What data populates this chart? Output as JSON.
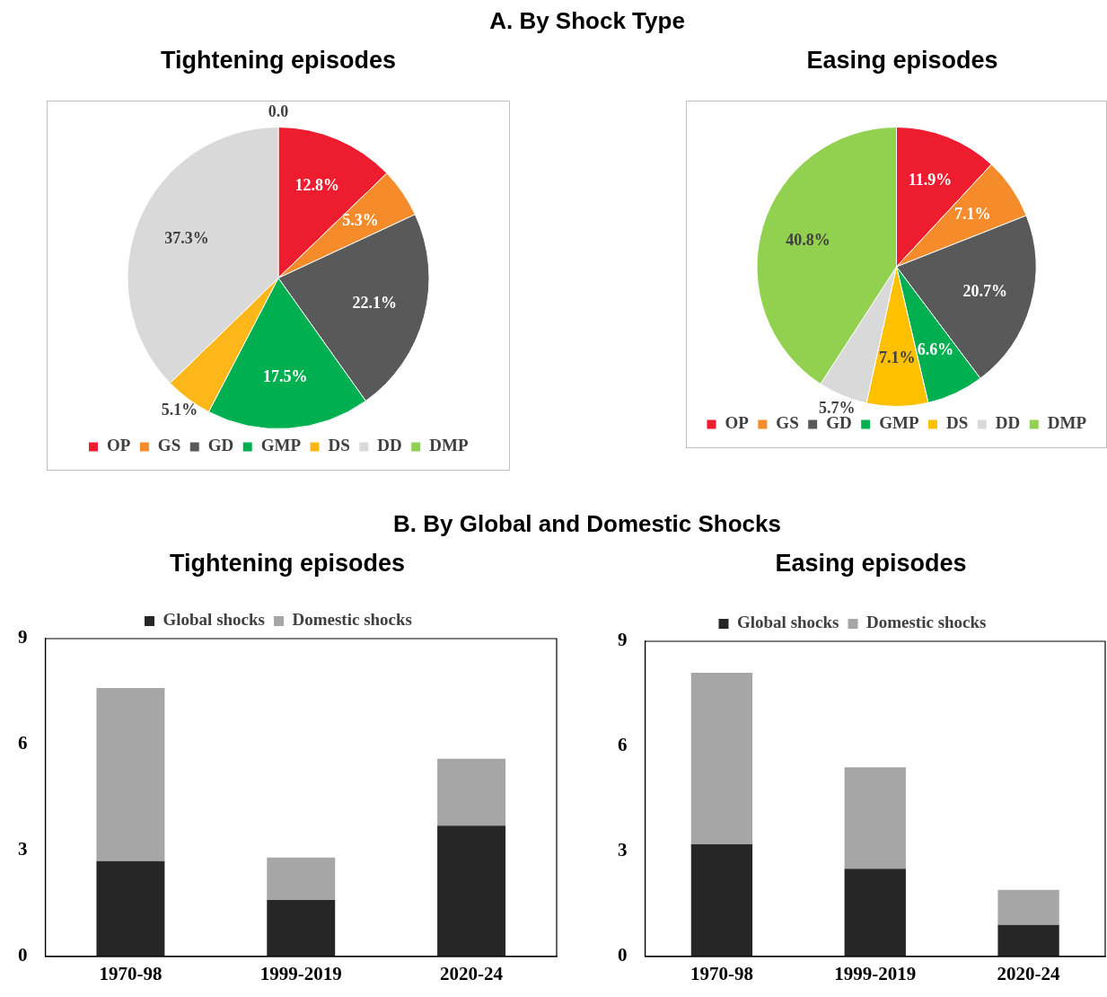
{
  "chart_data": [
    {
      "type": "pie",
      "title": "Tightening episodes",
      "annotations": [
        "A.   By Shock Type"
      ],
      "categories": [
        "OP",
        "GS",
        "GD",
        "GMP",
        "DS",
        "DD",
        "DMP"
      ],
      "values": [
        12.8,
        5.3,
        22.1,
        17.5,
        5.1,
        37.3,
        0.0
      ],
      "colors": [
        "#ed1c2e",
        "#f58b2a",
        "#595959",
        "#00b050",
        "#fdb719",
        "#d9d9d9",
        "#92d050"
      ],
      "value_labels": [
        "12.8%",
        "5.3%",
        "22.1%",
        "17.5%",
        "5.1%",
        "37.3%",
        "0.0"
      ],
      "legend": "bottom"
    },
    {
      "type": "pie",
      "title": "Easing episodes",
      "categories": [
        "OP",
        "GS",
        "GD",
        "GMP",
        "DS",
        "DD",
        "DMP"
      ],
      "values": [
        11.9,
        7.1,
        20.7,
        6.6,
        7.1,
        5.7,
        40.8
      ],
      "colors": [
        "#ed1c2e",
        "#f58b2a",
        "#595959",
        "#00b050",
        "#ffc000",
        "#d9d9d9",
        "#92d050"
      ],
      "value_labels": [
        "11.9%",
        "7.1%",
        "20.7%",
        "6.6%",
        "7.1%",
        "5.7%",
        "40.8%"
      ],
      "legend": "bottom"
    },
    {
      "type": "bar",
      "title": "Tightening episodes",
      "annotations": [
        "B.   By Global and Domestic Shocks"
      ],
      "categories": [
        "1970-98",
        "1999-2019",
        "2020-24"
      ],
      "stacked": true,
      "ylim": [
        0,
        9
      ],
      "yticks": [
        0,
        3,
        6,
        9
      ],
      "legend": "top",
      "series": [
        {
          "name": "Global shocks",
          "color": "#262626",
          "values": [
            2.7,
            1.6,
            3.7
          ]
        },
        {
          "name": "Domestic shocks",
          "color": "#a6a6a6",
          "values": [
            4.9,
            1.2,
            1.9
          ]
        }
      ]
    },
    {
      "type": "bar",
      "title": "Easing episodes",
      "categories": [
        "1970-98",
        "1999-2019",
        "2020-24"
      ],
      "stacked": true,
      "ylim": [
        0,
        9
      ],
      "yticks": [
        0,
        3,
        6,
        9
      ],
      "legend": "top",
      "series": [
        {
          "name": "Global shocks",
          "color": "#262626",
          "values": [
            3.2,
            2.5,
            0.9
          ]
        },
        {
          "name": "Domestic shocks",
          "color": "#a6a6a6",
          "values": [
            4.9,
            2.9,
            1.0
          ]
        }
      ]
    }
  ]
}
